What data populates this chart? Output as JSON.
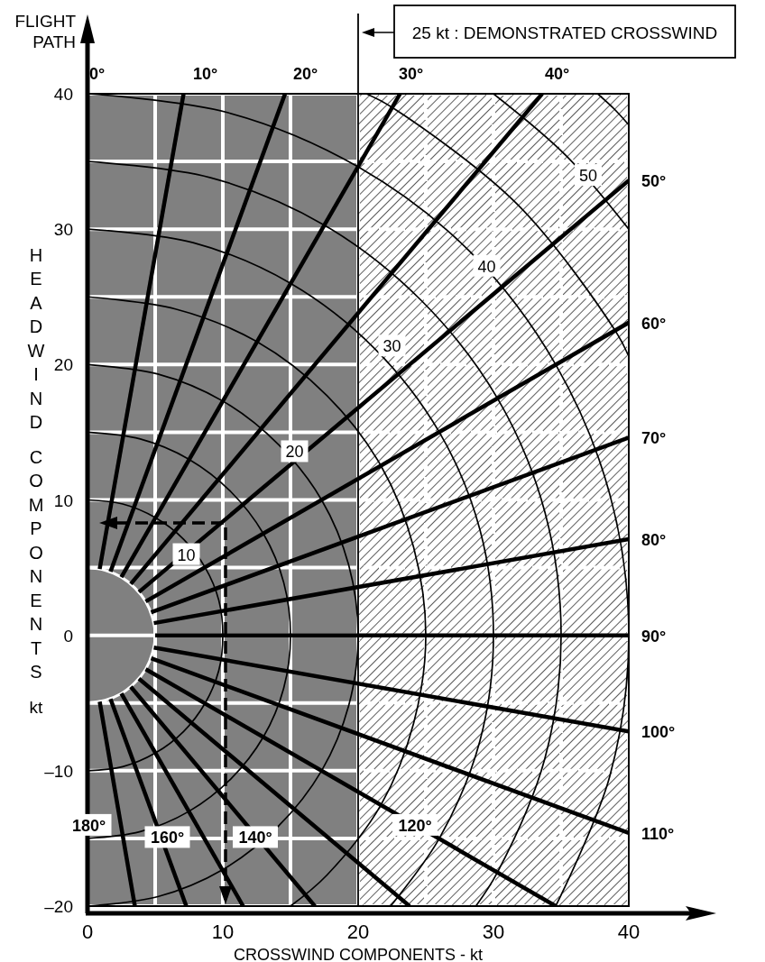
{
  "chart_data": {
    "type": "line",
    "xlabel": "CROSSWIND COMPONENTS - kt",
    "ylabel": "HEADWIND COMPONENTS kt",
    "xlim": [
      0,
      40
    ],
    "ylim": [
      -20,
      40
    ],
    "xticks": [
      0,
      {
        "value": 5,
        "label": null
      },
      10,
      {
        "value": 15,
        "label": null
      },
      20,
      {
        "value": 25,
        "label": null
      },
      30,
      {
        "value": 35,
        "label": null
      },
      40
    ],
    "yticks": [
      {
        "value": -20,
        "label": "–20"
      },
      {
        "value": -15,
        "label": null
      },
      {
        "value": -10,
        "label": "–10"
      },
      {
        "value": -5,
        "label": null
      },
      0,
      {
        "value": 5,
        "label": null
      },
      10,
      {
        "value": 15,
        "label": null
      },
      20,
      {
        "value": 25,
        "label": null
      },
      30,
      {
        "value": 35,
        "label": null
      },
      40
    ],
    "grid": true,
    "bands": [
      {
        "axis": "x",
        "from": 0,
        "to": 20,
        "color": "#808080"
      },
      {
        "axis": "x",
        "from": 20,
        "to": 40,
        "color": "#000000"
      }
    ],
    "ref_lines": [
      {
        "axis": "x",
        "value": 20,
        "label": "25 kt : DEMONSTRATED CROSSWIND",
        "color": "#000000"
      }
    ],
    "series": [
      {
        "color": "#ffffff",
        "x": [
          0,
          1.3,
          2.5,
          3.5,
          4.3,
          4.8,
          5,
          4.8,
          4.3,
          3.5,
          2.5,
          1.3,
          0
        ],
        "values": [
          5,
          4.8,
          4.3,
          3.5,
          2.5,
          1.3,
          0,
          -1.3,
          -2.5,
          -3.5,
          -4.3,
          -4.8,
          -5
        ]
      },
      {
        "color": "#000000",
        "x": [
          0,
          2.6,
          5,
          7.1,
          8.7,
          9.7,
          10,
          9.7,
          8.7,
          7.1,
          5,
          2.6,
          0
        ],
        "values": [
          10,
          9.7,
          8.7,
          7.1,
          5,
          2.6,
          0,
          -2.6,
          -5,
          -7.1,
          -8.7,
          -9.7,
          -10
        ]
      },
      {
        "color": "#000000",
        "x": [
          0,
          3.9,
          7.5,
          10.6,
          13,
          14.5,
          15,
          14.5,
          13,
          10.6,
          7.5,
          3.9,
          0
        ],
        "values": [
          15,
          14.5,
          13,
          10.6,
          7.5,
          3.9,
          0,
          -3.9,
          -7.5,
          -10.6,
          -13,
          -14.5,
          -15
        ]
      },
      {
        "color": "#000000",
        "x": [
          0,
          5.2,
          10,
          14.1,
          17.3,
          19.3,
          20,
          19.3,
          17.3,
          14.1,
          10,
          5.2,
          0
        ],
        "values": [
          20,
          19.3,
          17.3,
          14.1,
          10,
          5.2,
          0,
          -5.2,
          -10,
          -14.1,
          -17.3,
          -19.3,
          -20
        ]
      },
      {
        "color": "#000000",
        "x": [
          0,
          6.5,
          12.5,
          17.7,
          21.7,
          24.1,
          25,
          24.1,
          21.7,
          17.7,
          15
        ],
        "values": [
          25,
          24.1,
          21.7,
          17.7,
          12.5,
          6.5,
          0,
          -6.5,
          -12.5,
          -17.7,
          -20
        ]
      },
      {
        "color": "#000000",
        "x": [
          0,
          7.8,
          15,
          21.2,
          26,
          29,
          30,
          29,
          26,
          22.4
        ],
        "values": [
          30,
          29,
          26,
          21.2,
          15,
          7.8,
          0,
          -7.8,
          -15,
          -20
        ]
      },
      {
        "color": "#000000",
        "x": [
          0,
          9.1,
          17.5,
          24.7,
          30.3,
          33.8,
          35,
          33.8,
          30.3,
          28.7
        ],
        "values": [
          35,
          33.8,
          30.3,
          24.7,
          17.5,
          9.1,
          0,
          -9.1,
          -17.5,
          -20
        ]
      },
      {
        "color": "#000000",
        "x": [
          0,
          10.4,
          20,
          28.3,
          34.6,
          38.6,
          40,
          38.6,
          34.6
        ],
        "values": [
          40,
          38.6,
          34.6,
          28.3,
          20,
          10.4,
          0,
          -10.4,
          -20
        ]
      },
      {
        "color": "#000000",
        "x": [
          20.6,
          22.5,
          31.8,
          39,
          40
        ],
        "values": [
          40,
          39,
          31.8,
          22.5,
          20.6
        ]
      },
      {
        "color": "#000000",
        "x": [
          30,
          35.4,
          40
        ],
        "values": [
          40,
          35.4,
          30
        ]
      },
      {
        "color": "#000000",
        "x": [
          37.7,
          38.9,
          40
        ],
        "values": [
          40,
          38.9,
          37.7
        ]
      },
      {
        "color": "#000000",
        "x": [
          0.9,
          7.1
        ],
        "values": [
          4.9,
          40
        ]
      },
      {
        "color": "#000000",
        "x": [
          1.7,
          14.6
        ],
        "values": [
          4.7,
          40
        ]
      },
      {
        "color": "#000000",
        "x": [
          2.5,
          23.1
        ],
        "values": [
          4.3,
          40
        ]
      },
      {
        "color": "#000000",
        "x": [
          3.2,
          33.6
        ],
        "values": [
          3.8,
          40
        ]
      },
      {
        "color": "#000000",
        "x": [
          3.8,
          40
        ],
        "values": [
          3.2,
          33.6
        ]
      },
      {
        "color": "#000000",
        "x": [
          4.3,
          40
        ],
        "values": [
          2.5,
          23.1
        ]
      },
      {
        "color": "#000000",
        "x": [
          4.7,
          40
        ],
        "values": [
          1.7,
          14.6
        ]
      },
      {
        "color": "#000000",
        "x": [
          4.9,
          40
        ],
        "values": [
          0.9,
          7.1
        ]
      },
      {
        "color": "#000000",
        "x": [
          5,
          40
        ],
        "values": [
          0,
          0
        ]
      },
      {
        "color": "#000000",
        "x": [
          4.9,
          40
        ],
        "values": [
          -0.9,
          -7.1
        ]
      },
      {
        "color": "#000000",
        "x": [
          4.7,
          40
        ],
        "values": [
          -1.7,
          -14.6
        ]
      },
      {
        "color": "#000000",
        "x": [
          4.3,
          34.6
        ],
        "values": [
          -2.5,
          -20
        ]
      },
      {
        "color": "#000000",
        "x": [
          3.8,
          23.8
        ],
        "values": [
          -3.2,
          -20
        ]
      },
      {
        "color": "#000000",
        "x": [
          3.2,
          16.8
        ],
        "values": [
          -3.8,
          -20
        ]
      },
      {
        "color": "#000000",
        "x": [
          2.5,
          11.5
        ],
        "values": [
          -4.3,
          -20
        ]
      },
      {
        "color": "#000000",
        "x": [
          1.7,
          7.3
        ],
        "values": [
          -4.7,
          -20
        ]
      },
      {
        "color": "#000000",
        "x": [
          0.9,
          3.5
        ],
        "values": [
          -4.9,
          -20
        ]
      }
    ],
    "annotations": [
      "FLIGHT PATH",
      {
        "text": "10",
        "x": 7.3,
        "y": 6
      },
      {
        "text": "20",
        "x": 15.3,
        "y": 13.6
      },
      {
        "text": "30",
        "x": 22.5,
        "y": 21.4
      },
      {
        "text": "40",
        "x": 29.5,
        "y": 27.3
      },
      {
        "text": "50",
        "x": 37,
        "y": 34
      },
      {
        "text": "0°",
        "x": 0.7,
        "y": 40
      },
      {
        "text": "10°",
        "x": 8.7,
        "y": 40
      },
      {
        "text": "20°",
        "x": 16.1,
        "y": 40
      },
      {
        "text": "30°",
        "x": 23.9,
        "y": 40
      },
      {
        "text": "40°",
        "x": 34.7,
        "y": 40
      },
      {
        "text": "50°",
        "x": 40,
        "y": 33.6
      },
      {
        "text": "60°",
        "x": 40,
        "y": 23.1
      },
      {
        "text": "70°",
        "x": 40,
        "y": 14.6
      },
      {
        "text": "80°",
        "x": 40,
        "y": 7.1
      },
      {
        "text": "90°",
        "x": 40,
        "y": 0
      },
      {
        "text": "100°",
        "x": 40,
        "y": -7.1
      },
      {
        "text": "110°",
        "x": 40,
        "y": -14.6
      },
      {
        "text": "120°",
        "x": 24.2,
        "y": -14
      },
      {
        "text": "140°",
        "x": 12.4,
        "y": -14.9
      },
      {
        "text": "160°",
        "x": 5.9,
        "y": -14.9
      },
      {
        "text": "180°",
        "x": 0.1,
        "y": -14
      }
    ]
  }
}
